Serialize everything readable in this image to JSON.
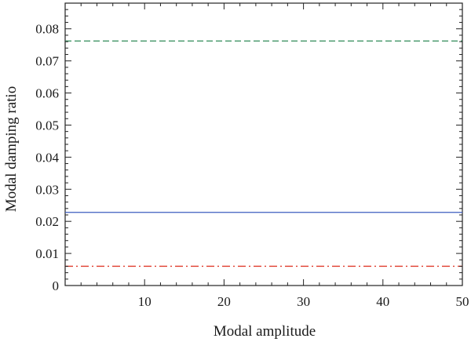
{
  "chart_data": {
    "type": "line",
    "title": "",
    "xlabel": "Modal amplitude",
    "ylabel": "Modal damping ratio",
    "xlim": [
      0,
      50
    ],
    "ylim": [
      0,
      0.088
    ],
    "x_ticks": [
      10,
      20,
      30,
      40,
      50
    ],
    "x_tick_labels": [
      "10",
      "20",
      "30",
      "40",
      "50"
    ],
    "y_ticks": [
      0,
      0.01,
      0.02,
      0.03,
      0.04,
      0.05,
      0.06,
      0.07,
      0.08
    ],
    "y_tick_labels": [
      "0",
      "0.01",
      "0.02",
      "0.03",
      "0.04",
      "0.05",
      "0.06",
      "0.07",
      "0.08"
    ],
    "grid": false,
    "legend": "none",
    "series": [
      {
        "x": [
          0,
          50
        ],
        "y": [
          0.0762,
          0.0762
        ],
        "color": "#2e8b57",
        "style": "dashed"
      },
      {
        "x": [
          0,
          50
        ],
        "y": [
          0.0228,
          0.0228
        ],
        "color": "#3b5bbf",
        "style": "solid"
      },
      {
        "x": [
          0,
          50
        ],
        "y": [
          0.006,
          0.006
        ],
        "color": "#e03c2c",
        "style": "dashdot"
      }
    ]
  }
}
